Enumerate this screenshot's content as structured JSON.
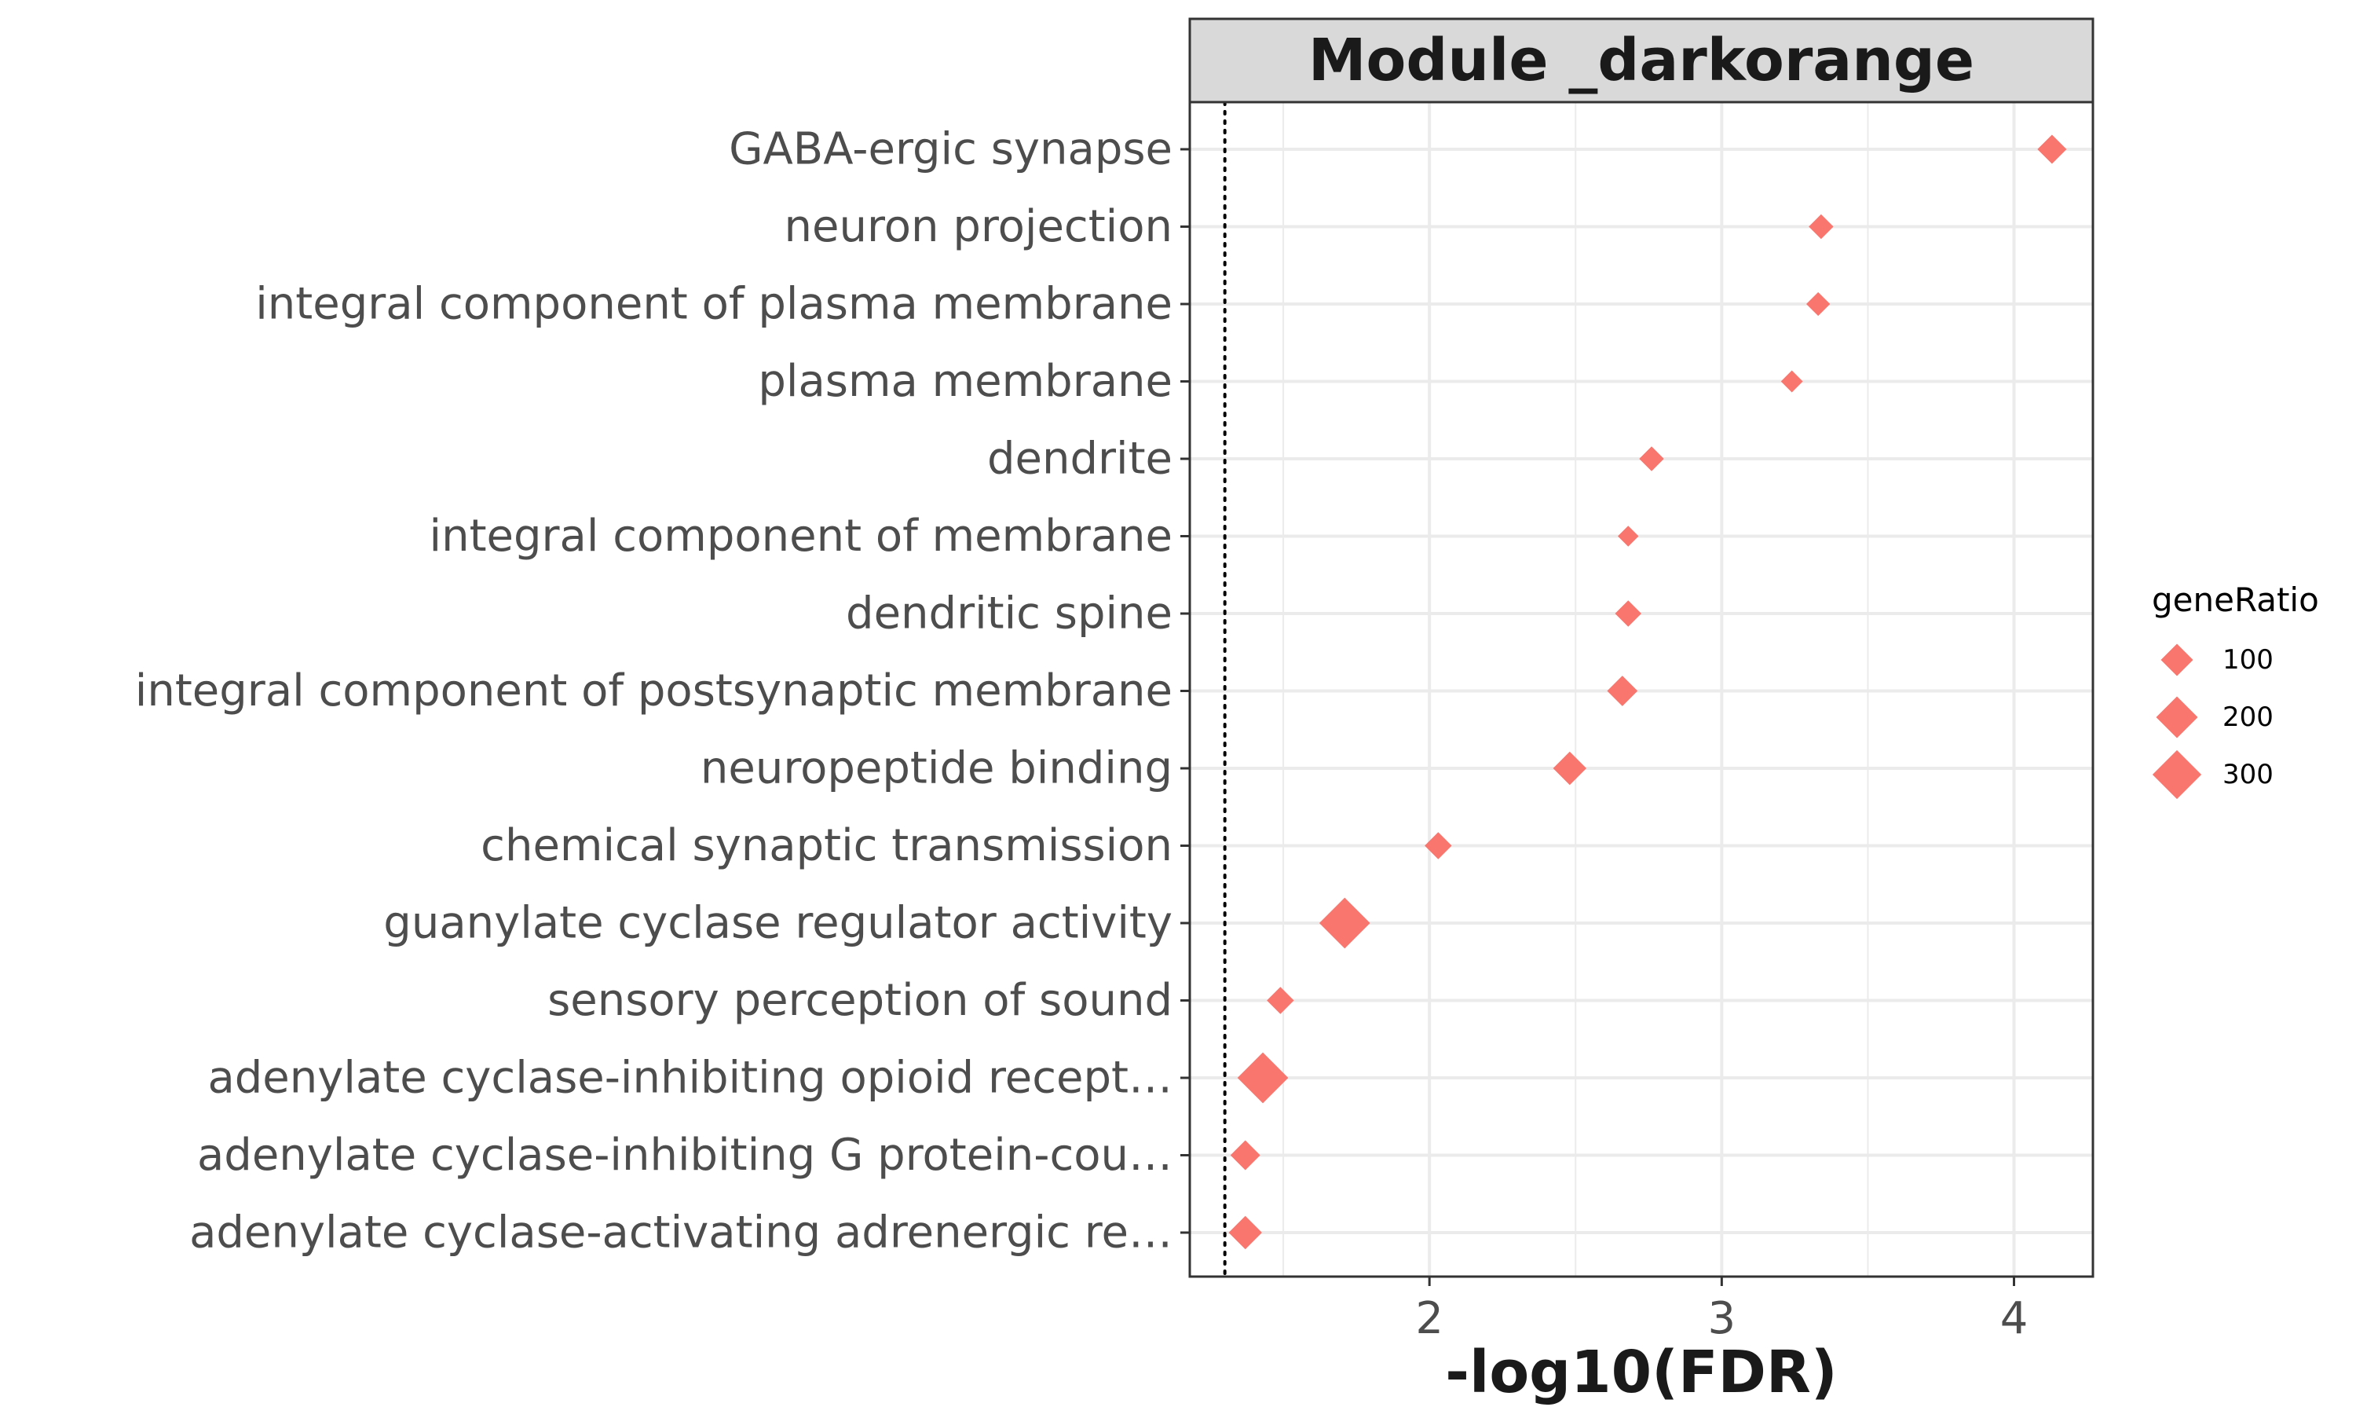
{
  "chart_data": {
    "type": "scatter",
    "title": "Module _darkorange",
    "xlabel": "-log10(FDR)",
    "ylabel": "",
    "xlim": [
      1.18,
      4.27
    ],
    "xticks": [
      2,
      3,
      4
    ],
    "threshold_line": 1.3,
    "grid": true,
    "marker": "diamond",
    "color": "#F8766D",
    "categories": [
      "GABA-ergic synapse",
      "neuron projection",
      "integral component of plasma membrane",
      "plasma membrane",
      "dendrite",
      "integral component of membrane",
      "dendritic spine",
      "integral component of postsynaptic membrane",
      "neuropeptide binding",
      "chemical synaptic transmission",
      "guanylate cyclase regulator activity",
      "sensory perception of sound",
      "adenylate cyclase-inhibiting opioid recept…",
      "adenylate cyclase-inhibiting G protein-cou…",
      "adenylate cyclase-activating adrenergic re…"
    ],
    "x": [
      4.13,
      3.34,
      3.33,
      3.24,
      2.76,
      2.68,
      2.68,
      2.66,
      2.48,
      2.03,
      1.71,
      1.49,
      1.43,
      1.37,
      1.37
    ],
    "geneRatio": [
      75,
      45,
      40,
      30,
      45,
      25,
      55,
      85,
      110,
      60,
      330,
      60,
      330,
      80,
      110
    ],
    "legend": {
      "title": "geneRatio",
      "position": "right",
      "entries": [
        {
          "label": "100",
          "value": 100
        },
        {
          "label": "200",
          "value": 200
        },
        {
          "label": "300",
          "value": 300
        }
      ]
    }
  }
}
